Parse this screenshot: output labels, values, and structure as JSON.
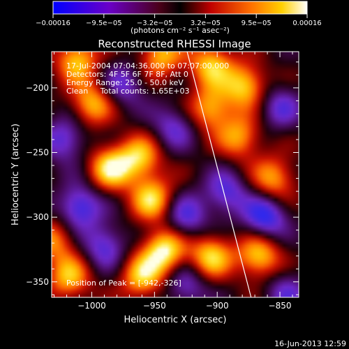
{
  "chart_data": {
    "type": "heatmap",
    "title": "Reconstructed RHESSI Image",
    "xlabel": "Heliocentric X (arcsec)",
    "ylabel": "Heliocentric Y (arcsec)",
    "xlim": [
      -1032,
      -835
    ],
    "ylim": [
      -362,
      -172
    ],
    "x_ticks": [
      -1000,
      -950,
      -900,
      -850
    ],
    "x_tick_labels": [
      "−1000",
      "−950",
      "−900",
      "−850"
    ],
    "y_ticks": [
      -200,
      -250,
      -300,
      -350
    ],
    "y_tick_labels": [
      "−200",
      "−250",
      "−300",
      "−350"
    ],
    "colorbar": {
      "min": -0.00016,
      "max": 0.00016,
      "tick_labels": [
        "−0.00016",
        "−9.5e−05",
        "−3.2e−05",
        "3.2e−05",
        "9.5e−05",
        "0.00016"
      ],
      "unit_label": "(photons cm⁻² s⁻¹ asec⁻²)"
    },
    "limb_line": [
      [
        -924,
        -172
      ],
      [
        -873,
        -362
      ]
    ],
    "peak": [
      -942,
      -326
    ],
    "annotations": [
      "17-Jul-2004 07:04:36.000 to 07:07:00.000",
      "Detectors: 4F 5F 6F 7F 8F, Att 0",
      "Energy Range: 25.0 - 50.0 keV",
      "Clean     Total counts: 1.65E+03",
      "Position of Peak = [-942,-326]"
    ],
    "blobs": [
      {
        "x": -942,
        "y": -326,
        "a": 1.0
      },
      {
        "x": -952,
        "y": -286,
        "a": 0.85
      },
      {
        "x": -985,
        "y": -262,
        "a": 0.9
      },
      {
        "x": -962,
        "y": -254,
        "a": 0.8
      },
      {
        "x": -1000,
        "y": -212,
        "a": 0.75
      },
      {
        "x": -1012,
        "y": -178,
        "a": 0.8
      },
      {
        "x": -945,
        "y": -175,
        "a": 0.75
      },
      {
        "x": -905,
        "y": -182,
        "a": 0.8
      },
      {
        "x": -905,
        "y": -216,
        "a": 0.75
      },
      {
        "x": -882,
        "y": -238,
        "a": 0.7
      },
      {
        "x": -878,
        "y": -198,
        "a": 0.85
      },
      {
        "x": -905,
        "y": -330,
        "a": 0.85
      },
      {
        "x": -867,
        "y": -330,
        "a": 0.85
      },
      {
        "x": -855,
        "y": -270,
        "a": 0.7
      },
      {
        "x": -960,
        "y": -346,
        "a": 0.8
      },
      {
        "x": -1018,
        "y": -347,
        "a": 0.75
      },
      {
        "x": -1030,
        "y": -318,
        "a": 0.6
      },
      {
        "x": -1010,
        "y": -292,
        "a": -0.75
      },
      {
        "x": -990,
        "y": -322,
        "a": -0.6
      },
      {
        "x": -925,
        "y": -300,
        "a": -0.6
      },
      {
        "x": -862,
        "y": -300,
        "a": -0.8
      },
      {
        "x": -893,
        "y": -281,
        "a": -0.6
      },
      {
        "x": -935,
        "y": -230,
        "a": -0.5
      },
      {
        "x": -975,
        "y": -198,
        "a": -0.5
      },
      {
        "x": -925,
        "y": -353,
        "a": -0.5
      },
      {
        "x": -1022,
        "y": -240,
        "a": -0.6
      },
      {
        "x": -845,
        "y": -358,
        "a": -0.45
      },
      {
        "x": -850,
        "y": -215,
        "a": -0.5
      }
    ]
  },
  "timestamp": "16-Jun-2013 12:59"
}
